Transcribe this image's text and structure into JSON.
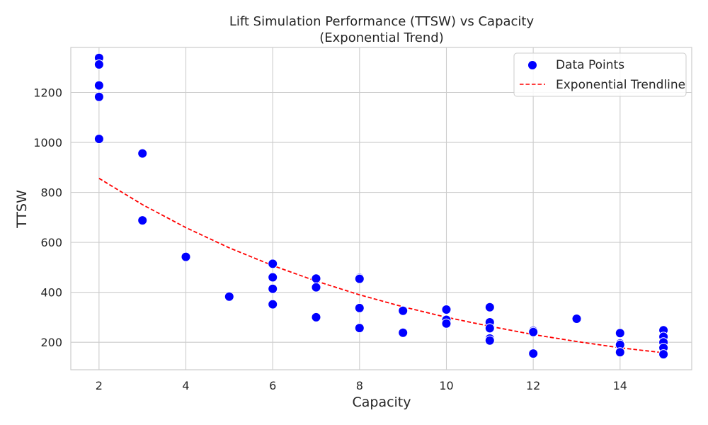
{
  "chart_data": {
    "type": "scatter",
    "title": "Lift Simulation Performance (TTSW) vs Capacity",
    "subtitle": "(Exponential Trend)",
    "xlabel": "Capacity",
    "ylabel": "TTSW",
    "xlim": [
      1.35,
      15.65
    ],
    "ylim": [
      90,
      1380
    ],
    "xticks": [
      2,
      4,
      6,
      8,
      10,
      12,
      14
    ],
    "yticks": [
      200,
      400,
      600,
      800,
      1000,
      1200
    ],
    "grid": true,
    "legend_position": "top-right",
    "series": [
      {
        "name": "Data Points",
        "kind": "scatter",
        "color": "#0000ff",
        "points": [
          [
            2,
            1338
          ],
          [
            2,
            1312
          ],
          [
            2,
            1228
          ],
          [
            2,
            1182
          ],
          [
            2,
            1014
          ],
          [
            3,
            956
          ],
          [
            3,
            688
          ],
          [
            4,
            542
          ],
          [
            5,
            383
          ],
          [
            6,
            514
          ],
          [
            6,
            460
          ],
          [
            6,
            414
          ],
          [
            6,
            352
          ],
          [
            7,
            455
          ],
          [
            7,
            420
          ],
          [
            7,
            300
          ],
          [
            8,
            458
          ],
          [
            8,
            454
          ],
          [
            8,
            337
          ],
          [
            8,
            257
          ],
          [
            9,
            326
          ],
          [
            9,
            238
          ],
          [
            10,
            331
          ],
          [
            10,
            290
          ],
          [
            10,
            275
          ],
          [
            11,
            340
          ],
          [
            11,
            280
          ],
          [
            11,
            256
          ],
          [
            11,
            215
          ],
          [
            11,
            207
          ],
          [
            12,
            246
          ],
          [
            12,
            241
          ],
          [
            12,
            155
          ],
          [
            13,
            294
          ],
          [
            14,
            237
          ],
          [
            14,
            195
          ],
          [
            14,
            190
          ],
          [
            14,
            160
          ],
          [
            15,
            248
          ],
          [
            15,
            222
          ],
          [
            15,
            200
          ],
          [
            15,
            178
          ],
          [
            15,
            152
          ]
        ]
      },
      {
        "name": "Exponential Trendline",
        "kind": "line",
        "style": "dashed",
        "color": "#ff0000",
        "x": [
          2,
          3,
          4,
          5,
          6,
          7,
          8,
          9,
          10,
          11,
          12,
          13,
          14,
          15
        ],
        "y": [
          856,
          751,
          659,
          578,
          507,
          445,
          390,
          342,
          300,
          264,
          231,
          203,
          178,
          158
        ]
      }
    ]
  }
}
